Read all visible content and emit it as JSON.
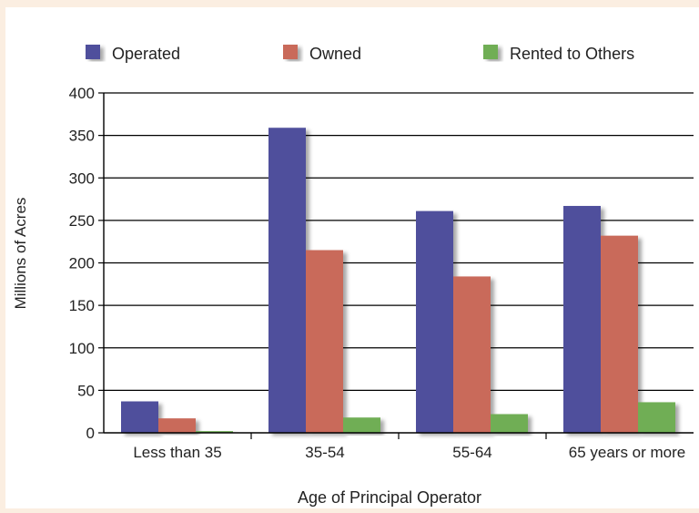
{
  "chart_data": {
    "type": "bar",
    "title": "",
    "xlabel": "Age of Principal Operator",
    "ylabel": "Millions of Acres",
    "categories": [
      "Less than 35",
      "35-54",
      "55-64",
      "65 years or more"
    ],
    "series": [
      {
        "name": "Operated",
        "color": "#4f4f9c",
        "values": [
          37,
          359,
          261,
          267
        ]
      },
      {
        "name": "Owned",
        "color": "#c96a5a",
        "values": [
          17,
          215,
          184,
          232
        ]
      },
      {
        "name": "Rented to Others",
        "color": "#6fae55",
        "values": [
          2,
          18,
          22,
          36
        ]
      }
    ],
    "ylim": [
      0,
      400
    ],
    "yticks": [
      "0",
      "50",
      "100",
      "150",
      "200",
      "250",
      "300",
      "350",
      "400"
    ],
    "grid": true,
    "legend_position": "top"
  }
}
